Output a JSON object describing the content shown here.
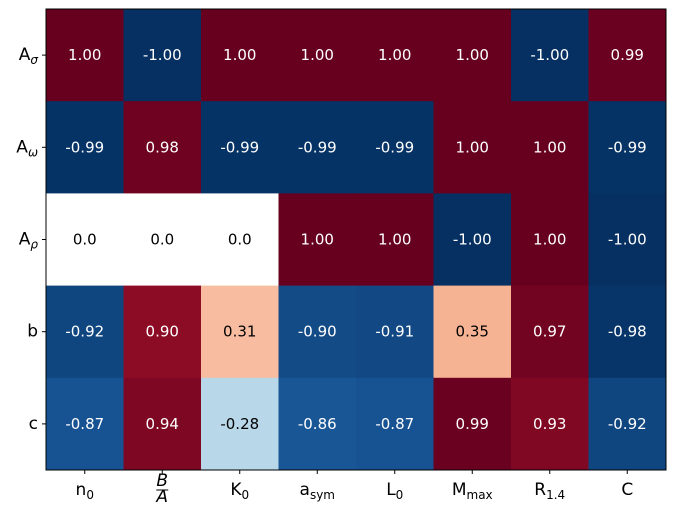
{
  "chart_data": {
    "type": "heatmap",
    "title": "",
    "xlabel": "",
    "ylabel": "",
    "x_categories": [
      "n0",
      "B/A",
      "K0",
      "asym",
      "L0",
      "Mmax",
      "R1.4",
      "C"
    ],
    "y_categories": [
      "Aσ",
      "Aω",
      "Aρ",
      "b",
      "c"
    ],
    "values": [
      [
        1.0,
        -1.0,
        1.0,
        1.0,
        1.0,
        1.0,
        -1.0,
        0.99
      ],
      [
        -0.99,
        0.98,
        -0.99,
        -0.99,
        -0.99,
        1.0,
        1.0,
        -0.99
      ],
      [
        0.0,
        0.0,
        0.0,
        1.0,
        1.0,
        -1.0,
        1.0,
        -1.0
      ],
      [
        -0.92,
        0.9,
        0.31,
        -0.9,
        -0.91,
        0.35,
        0.97,
        -0.98
      ],
      [
        -0.87,
        0.94,
        -0.28,
        -0.86,
        -0.87,
        0.99,
        0.93,
        -0.92
      ]
    ],
    "cell_labels": [
      [
        "1.00",
        "-1.00",
        "1.00",
        "1.00",
        "1.00",
        "1.00",
        "-1.00",
        "0.99"
      ],
      [
        "-0.99",
        "0.98",
        "-0.99",
        "-0.99",
        "-0.99",
        "1.00",
        "1.00",
        "-0.99"
      ],
      [
        "0.0",
        "0.0",
        "0.0",
        "1.00",
        "1.00",
        "-1.00",
        "1.00",
        "-1.00"
      ],
      [
        "-0.92",
        "0.90",
        "0.31",
        "-0.90",
        "-0.91",
        "0.35",
        "0.97",
        "-0.98"
      ],
      [
        "-0.87",
        "0.94",
        "-0.28",
        "-0.86",
        "-0.87",
        "0.99",
        "0.93",
        "-0.92"
      ]
    ],
    "value_range": [
      -1,
      1
    ],
    "colormap": "RdBu_r",
    "colors": {
      "negative_extreme": "#053061",
      "neutral": "#ffffff",
      "positive_extreme": "#67001f"
    },
    "grid": false,
    "legend": "none"
  }
}
